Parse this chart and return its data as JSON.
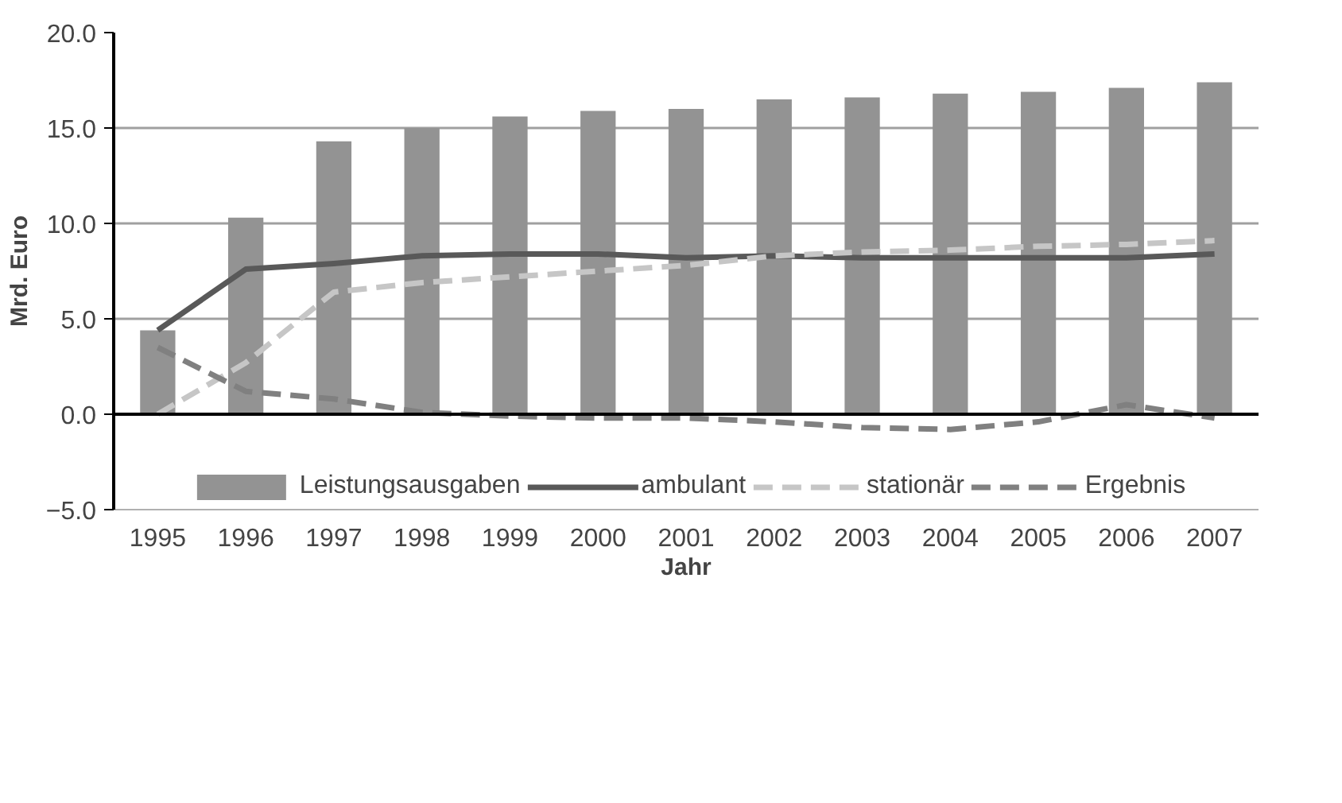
{
  "chart_data": {
    "type": "bar",
    "xlabel": "Jahr",
    "ylabel": "Mrd. Euro",
    "categories": [
      "1995",
      "1996",
      "1997",
      "1998",
      "1999",
      "2000",
      "2001",
      "2002",
      "2003",
      "2004",
      "2005",
      "2006",
      "2007"
    ],
    "series": [
      {
        "name": "Leistungsausgaben",
        "color": "#939393",
        "values": [
          4.4,
          10.3,
          14.3,
          15.0,
          15.6,
          15.9,
          16.0,
          16.5,
          16.6,
          16.8,
          16.9,
          17.1,
          17.4
        ]
      },
      {
        "name": "ambulant",
        "type": "line",
        "line_style": "solid",
        "color": "#595959",
        "values": [
          4.4,
          7.6,
          7.9,
          8.3,
          8.4,
          8.4,
          8.2,
          8.3,
          8.2,
          8.2,
          8.2,
          8.2,
          8.4
        ]
      },
      {
        "name": "stationär",
        "type": "line",
        "line_style": "dashed",
        "color": "#c6c6c6",
        "values": [
          0.0,
          2.7,
          6.4,
          6.9,
          7.2,
          7.5,
          7.8,
          8.3,
          8.5,
          8.6,
          8.8,
          8.9,
          9.1
        ]
      },
      {
        "name": "Ergebnis",
        "type": "line",
        "line_style": "dashed",
        "color": "#808080",
        "values": [
          3.5,
          1.2,
          0.8,
          0.1,
          -0.1,
          -0.2,
          -0.2,
          -0.4,
          -0.7,
          -0.8,
          -0.4,
          0.5,
          -0.2
        ]
      }
    ],
    "ylim": [
      -5,
      20
    ],
    "yticks": [
      {
        "value": -5,
        "label": "−5.0"
      },
      {
        "value": 0,
        "label": "0.0"
      },
      {
        "value": 5,
        "label": "5.0"
      },
      {
        "value": 10,
        "label": "10.0"
      },
      {
        "value": 15,
        "label": "15.0"
      },
      {
        "value": 20,
        "label": "20.0"
      }
    ],
    "grid": "y",
    "legend": "bottom"
  }
}
